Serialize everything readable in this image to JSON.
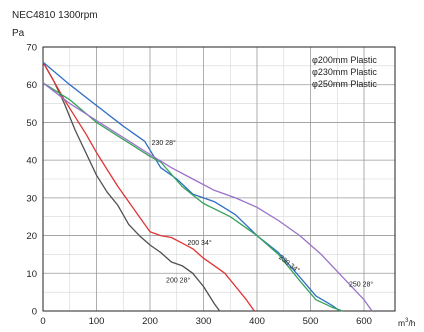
{
  "chart_data": {
    "type": "line",
    "title": "NEC4810 1300rpm",
    "ylabel": "Pa",
    "xlabel_base": "m",
    "xlabel_sup": "3",
    "xlabel_tail": "/h",
    "xlim": [
      0,
      620
    ],
    "ylim": [
      0,
      70
    ],
    "xticks": [
      0,
      100,
      200,
      300,
      400,
      500,
      600
    ],
    "yticks": [
      0,
      10,
      20,
      30,
      40,
      50,
      60,
      70
    ],
    "grid": true,
    "legend_placement": "top-right",
    "legend": [
      "φ200mm Plastic",
      "φ230mm Plastic",
      "φ250mm Plastic"
    ],
    "series": [
      {
        "color": "#505050",
        "x": [
          0,
          20,
          40,
          60,
          80,
          100,
          120,
          140,
          160,
          180,
          200,
          220,
          240,
          260,
          280,
          300,
          320,
          330
        ],
        "y": [
          66,
          61,
          55,
          48,
          42,
          36,
          31.5,
          28,
          23,
          20,
          17.5,
          15.5,
          13,
          12,
          10,
          6.5,
          2,
          0
        ]
      },
      {
        "color": "#e03535",
        "x": [
          0,
          20,
          40,
          60,
          80,
          100,
          120,
          140,
          160,
          180,
          200,
          220,
          240,
          260,
          280,
          300,
          320,
          340,
          360,
          380,
          395
        ],
        "y": [
          66,
          61,
          56,
          51.5,
          47,
          42,
          37.5,
          33,
          29,
          25,
          21,
          20,
          19.5,
          18,
          16.5,
          14,
          12,
          10,
          6.5,
          3,
          0
        ]
      },
      {
        "color": "#2f6fc5",
        "x": [
          0,
          50,
          100,
          150,
          190,
          220,
          250,
          280,
          320,
          360,
          400,
          440,
          480,
          510,
          540,
          555
        ],
        "y": [
          66,
          60,
          54.5,
          49,
          45,
          38,
          35,
          31,
          29,
          25.5,
          20,
          15.5,
          9,
          4,
          1.5,
          0
        ]
      },
      {
        "color": "#35a35a",
        "x": [
          0,
          50,
          100,
          150,
          200,
          220,
          260,
          300,
          350,
          400,
          440,
          480,
          510,
          540,
          560
        ],
        "y": [
          60.5,
          56,
          50,
          45.5,
          41,
          39.5,
          33,
          28.5,
          25,
          20,
          15,
          8,
          3,
          1,
          0
        ]
      },
      {
        "color": "#9a72c9",
        "x": [
          0,
          50,
          100,
          150,
          200,
          240,
          280,
          320,
          360,
          400,
          440,
          480,
          520,
          560,
          600,
          615
        ],
        "y": [
          60.5,
          55,
          50.5,
          46,
          41.5,
          38,
          35,
          32,
          30,
          27.5,
          24,
          20,
          15,
          9,
          3,
          0
        ]
      }
    ],
    "annotations": [
      {
        "text": "230 28°",
        "x": 203,
        "y": 44
      },
      {
        "text": "200 34°",
        "x": 270,
        "y": 17.5
      },
      {
        "text": "230 34°",
        "x": 440,
        "y": 14,
        "rotate": 38
      },
      {
        "text": "200 28°",
        "x": 230,
        "y": 7.5
      },
      {
        "text": "250 28°",
        "x": 572,
        "y": 6.5
      }
    ]
  }
}
